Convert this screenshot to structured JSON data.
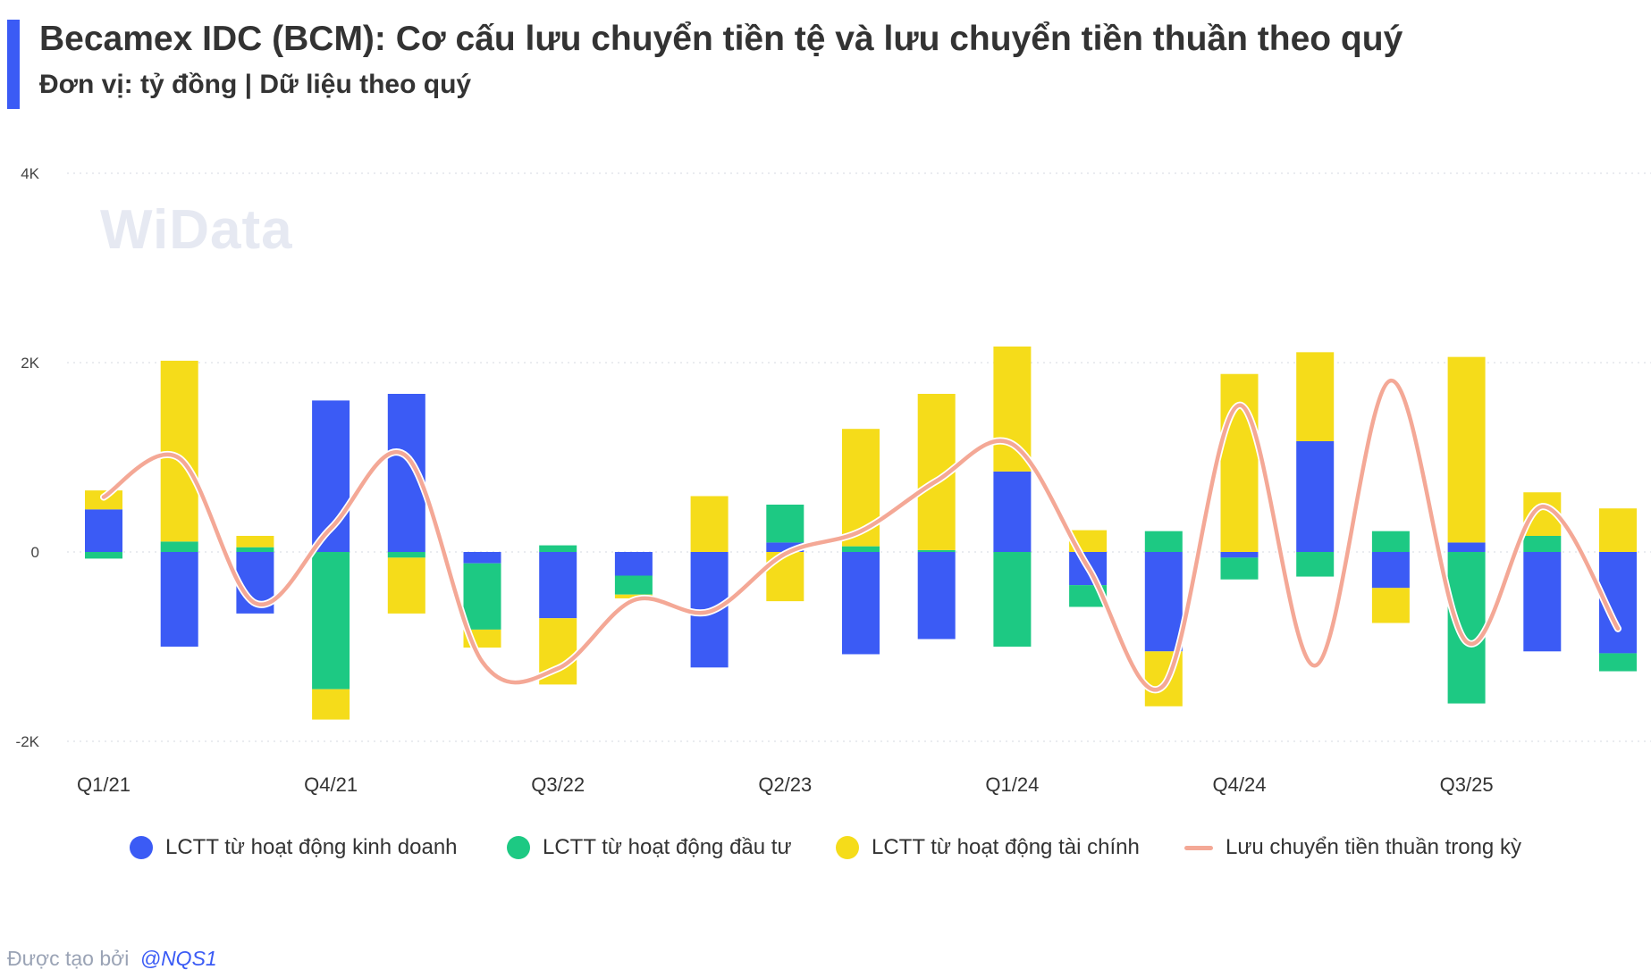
{
  "header": {
    "title": "Becamex IDC (BCM): Cơ cấu lưu chuyển tiền tệ và lưu chuyển tiền thuần theo quý",
    "subtitle": "Đơn vị: tỷ đồng | Dữ liệu theo quý",
    "accent_color": "#3B5BF5"
  },
  "watermark": "WiData",
  "footer": {
    "prefix": "Được tạo bởi",
    "handle": "@NQS1"
  },
  "chart_data": {
    "type": "bar",
    "stacked": true,
    "categories": [
      "Q1/21",
      "Q2/21",
      "Q3/21",
      "Q4/21",
      "Q1/22",
      "Q2/22",
      "Q3/22",
      "Q4/22",
      "Q1/23",
      "Q2/23",
      "Q3/23",
      "Q4/23",
      "Q1/24",
      "Q2/24",
      "Q3/24",
      "Q4/24",
      "Q1/25",
      "Q2/25",
      "Q3/25",
      "Q4/25",
      "Q1/26"
    ],
    "x_tick_labels": [
      "Q1/21",
      "Q4/21",
      "Q3/22",
      "Q2/23",
      "Q1/24",
      "Q4/24",
      "Q3/25"
    ],
    "y_tick_labels": [
      "4K",
      "2K",
      "0",
      "-2K"
    ],
    "y_ticks": [
      4000,
      2000,
      0,
      -2000
    ],
    "ylim": [
      -2000,
      4000
    ],
    "grid": true,
    "legend_position": "bottom",
    "series": [
      {
        "name": "LCTT từ hoạt động kinh doanh",
        "color": "#3B5BF5",
        "kind": "bar",
        "values": [
          450,
          -1000,
          -650,
          1600,
          1670,
          -120,
          -700,
          -250,
          -1220,
          100,
          -1080,
          -920,
          850,
          -350,
          -1050,
          -60,
          1170,
          -380,
          100,
          -1050,
          -1070
        ]
      },
      {
        "name": "LCTT từ hoạt động đầu tư",
        "color": "#1DC983",
        "kind": "bar",
        "values": [
          -70,
          110,
          50,
          -1450,
          -60,
          -700,
          70,
          -200,
          0,
          400,
          60,
          20,
          -1000,
          -230,
          220,
          -230,
          -260,
          220,
          -1600,
          170,
          -190
        ]
      },
      {
        "name": "LCTT từ hoạt động tài chính",
        "color": "#F5DC1A",
        "kind": "bar",
        "values": [
          200,
          1910,
          120,
          -320,
          -590,
          -190,
          -700,
          -40,
          590,
          -520,
          1240,
          1650,
          1320,
          230,
          -580,
          1880,
          940,
          -370,
          1960,
          460,
          460
        ]
      },
      {
        "name": "Lưu chuyển tiền thuần trong kỳ",
        "color": "#F4A896",
        "kind": "line",
        "values": [
          580,
          990,
          -540,
          250,
          1010,
          -1160,
          -1230,
          -510,
          -630,
          -20,
          220,
          750,
          1140,
          -160,
          -1410,
          1550,
          -1200,
          1810,
          -950,
          480,
          -810
        ]
      }
    ]
  }
}
